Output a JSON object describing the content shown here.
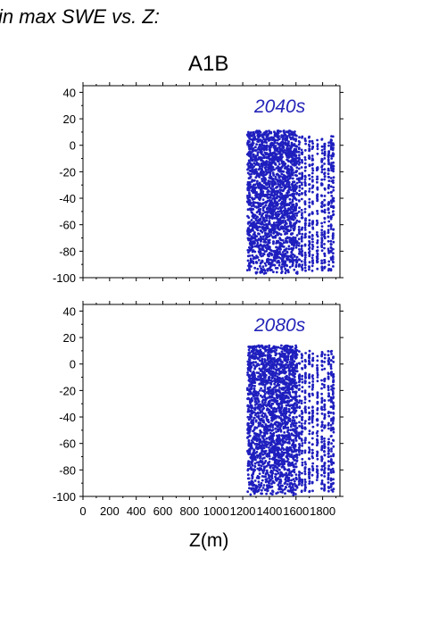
{
  "figure": {
    "title": "in max SWE vs. Z:",
    "scenario": "A1B",
    "xlabel": "Z(m)",
    "colors": {
      "points": "#1f1fbf",
      "label": "#2424b8",
      "axis": "#000000",
      "background": "#ffffff"
    }
  },
  "chart_data": [
    {
      "type": "scatter",
      "panel_label": "2040s",
      "xlim": [
        0,
        1930
      ],
      "ylim": [
        -100,
        45
      ],
      "x_ticks": [
        0,
        200,
        400,
        600,
        800,
        1000,
        1200,
        1400,
        1600,
        1800
      ],
      "y_ticks": [
        40,
        20,
        0,
        -20,
        -40,
        -60,
        -80,
        -100
      ],
      "x_tick_labels_shown": false,
      "grid": false,
      "point_cloud": {
        "x_range": [
          1235,
          1880
        ],
        "y_range": [
          -97,
          11
        ],
        "approx_points": 2600,
        "dense_x_range": [
          1235,
          1610
        ],
        "sparse_columns_x": [
          1625,
          1645,
          1670,
          1700,
          1725,
          1760,
          1795,
          1815,
          1845,
          1865,
          1880
        ]
      }
    },
    {
      "type": "scatter",
      "panel_label": "2080s",
      "xlim": [
        0,
        1930
      ],
      "ylim": [
        -100,
        45
      ],
      "x_ticks": [
        0,
        200,
        400,
        600,
        800,
        1000,
        1200,
        1400,
        1600,
        1800
      ],
      "y_ticks": [
        40,
        20,
        0,
        -20,
        -40,
        -60,
        -80,
        -100
      ],
      "x_tick_labels": [
        "0",
        "200",
        "400",
        "600",
        "800",
        "1000",
        "1200",
        "1400",
        "1600",
        "1800"
      ],
      "grid": false,
      "point_cloud": {
        "x_range": [
          1235,
          1880
        ],
        "y_range": [
          -99,
          14
        ],
        "approx_points": 2600,
        "dense_x_range": [
          1235,
          1610
        ],
        "sparse_columns_x": [
          1625,
          1645,
          1670,
          1700,
          1725,
          1760,
          1795,
          1815,
          1845,
          1865,
          1880
        ]
      }
    }
  ]
}
